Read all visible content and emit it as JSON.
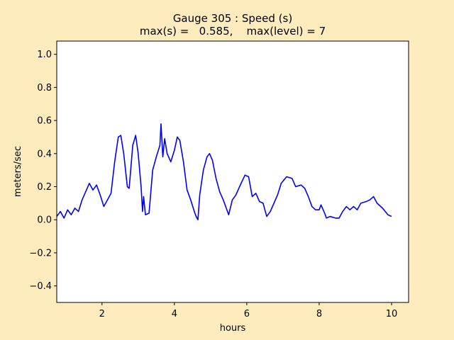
{
  "chart_data": {
    "type": "line",
    "title": "Gauge 305 : Speed (s)",
    "subtitle": "max(s) =   0.585,    max(level) = 7",
    "x_label": "hours",
    "y_label": "meters/sec",
    "color": "#0000ff",
    "x": [
      0.75,
      0.85,
      0.95,
      1.05,
      1.15,
      1.25,
      1.35,
      1.45,
      1.55,
      1.65,
      1.75,
      1.85,
      1.95,
      2.05,
      2.15,
      2.25,
      2.35,
      2.45,
      2.52,
      2.6,
      2.7,
      2.75,
      2.85,
      2.93,
      3.0,
      3.08,
      3.12,
      3.15,
      3.2,
      3.3,
      3.4,
      3.5,
      3.6,
      3.63,
      3.68,
      3.73,
      3.8,
      3.9,
      4.0,
      4.08,
      4.15,
      4.25,
      4.35,
      4.45,
      4.55,
      4.6,
      4.65,
      4.7,
      4.8,
      4.9,
      4.97,
      5.05,
      5.15,
      5.25,
      5.35,
      5.45,
      5.5,
      5.6,
      5.7,
      5.8,
      5.95,
      6.05,
      6.15,
      6.25,
      6.35,
      6.45,
      6.55,
      6.65,
      6.75,
      6.85,
      6.95,
      7.1,
      7.25,
      7.35,
      7.5,
      7.6,
      7.7,
      7.8,
      7.9,
      8.0,
      8.05,
      8.15,
      8.2,
      8.3,
      8.45,
      8.55,
      8.65,
      8.75,
      8.85,
      8.95,
      9.05,
      9.15,
      9.3,
      9.4,
      9.5,
      9.6,
      9.75,
      9.9,
      10.0
    ],
    "values": [
      0.02,
      0.05,
      0.01,
      0.06,
      0.03,
      0.07,
      0.05,
      0.12,
      0.17,
      0.22,
      0.18,
      0.21,
      0.15,
      0.08,
      0.12,
      0.16,
      0.35,
      0.5,
      0.51,
      0.4,
      0.2,
      0.19,
      0.45,
      0.51,
      0.4,
      0.2,
      0.05,
      0.14,
      0.03,
      0.04,
      0.3,
      0.38,
      0.45,
      0.58,
      0.38,
      0.49,
      0.4,
      0.35,
      0.42,
      0.5,
      0.48,
      0.35,
      0.18,
      0.12,
      0.05,
      0.02,
      0.0,
      0.15,
      0.3,
      0.38,
      0.4,
      0.36,
      0.25,
      0.17,
      0.12,
      0.06,
      0.03,
      0.12,
      0.15,
      0.2,
      0.27,
      0.26,
      0.14,
      0.16,
      0.11,
      0.1,
      0.02,
      0.05,
      0.1,
      0.15,
      0.22,
      0.26,
      0.25,
      0.2,
      0.21,
      0.19,
      0.14,
      0.08,
      0.06,
      0.06,
      0.09,
      0.04,
      0.01,
      0.02,
      0.01,
      0.01,
      0.05,
      0.08,
      0.06,
      0.08,
      0.06,
      0.1,
      0.11,
      0.12,
      0.14,
      0.1,
      0.07,
      0.03,
      0.02
    ],
    "xlim": [
      0.75,
      10.47
    ],
    "xticks": [
      2,
      4,
      6,
      8,
      10
    ],
    "ylim": [
      -0.5,
      1.08
    ],
    "yticks": [
      {
        "value": -0.4,
        "label": "−0.4"
      },
      {
        "value": -0.2,
        "label": "−0.2"
      },
      {
        "value": 0,
        "label": "0.0"
      },
      0.2,
      0.4,
      0.6,
      0.8,
      {
        "value": 1,
        "label": "1.0"
      }
    ]
  }
}
